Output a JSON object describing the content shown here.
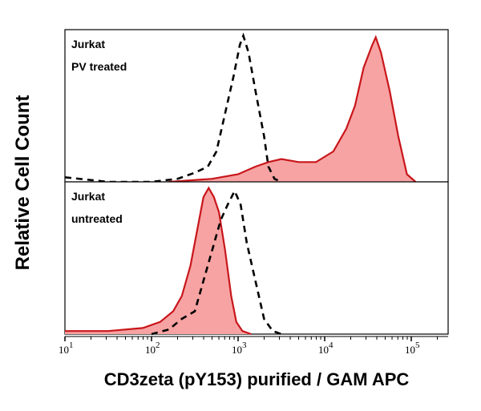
{
  "chart_data": {
    "type": "area",
    "xlabel": "CD3zeta (pY153) purified / GAM APC",
    "ylabel": "Relative Cell Count",
    "x_scale": "log",
    "xlim": [
      10,
      270000
    ],
    "x_ticks": [
      {
        "base": "10",
        "exp": "1"
      },
      {
        "base": "10",
        "exp": "2"
      },
      {
        "base": "10",
        "exp": "3"
      },
      {
        "base": "10",
        "exp": "4"
      },
      {
        "base": "10",
        "exp": "5"
      }
    ],
    "colors": {
      "fill": "#f7a3a3",
      "stroke": "#c8161b",
      "control": "#000000"
    },
    "panels": [
      {
        "label_line1": "Jurkat",
        "label_line2": "PV treated",
        "series": [
          {
            "style": "filled-red",
            "log10_x": [
              2.2,
              2.7,
              3.0,
              3.2,
              3.35,
              3.5,
              3.7,
              3.9,
              4.1,
              4.25,
              4.35,
              4.45,
              4.55,
              4.59,
              4.65,
              4.75,
              4.85,
              4.95,
              5.05
            ],
            "y": [
              0,
              0.02,
              0.05,
              0.1,
              0.13,
              0.15,
              0.13,
              0.13,
              0.2,
              0.35,
              0.5,
              0.75,
              0.9,
              0.95,
              0.85,
              0.6,
              0.3,
              0.05,
              0
            ]
          },
          {
            "style": "dashed-black",
            "log10_x": [
              1.0,
              1.5,
              2.0,
              2.3,
              2.5,
              2.65,
              2.75,
              2.85,
              2.95,
              3.02,
              3.06,
              3.12,
              3.2,
              3.3,
              3.35,
              3.42,
              3.5
            ],
            "y": [
              0.03,
              0.0,
              0.0,
              0.02,
              0.06,
              0.1,
              0.2,
              0.45,
              0.7,
              0.9,
              0.96,
              0.85,
              0.6,
              0.3,
              0.1,
              0.02,
              0
            ]
          }
        ]
      },
      {
        "label_line1": "Jurkat",
        "label_line2": "untreated",
        "series": [
          {
            "style": "filled-red",
            "log10_x": [
              1.0,
              1.5,
              1.9,
              2.1,
              2.25,
              2.35,
              2.45,
              2.5,
              2.55,
              2.6,
              2.66,
              2.72,
              2.78,
              2.85,
              2.92,
              2.98,
              3.05,
              3.15
            ],
            "y": [
              0.02,
              0.02,
              0.04,
              0.08,
              0.15,
              0.25,
              0.45,
              0.6,
              0.75,
              0.9,
              0.96,
              0.9,
              0.8,
              0.55,
              0.25,
              0.08,
              0.02,
              0
            ]
          },
          {
            "style": "dashed-black",
            "log10_x": [
              2.0,
              2.2,
              2.35,
              2.5,
              2.6,
              2.7,
              2.8,
              2.88,
              2.96,
              3.03,
              3.1,
              3.2,
              3.3,
              3.4,
              3.5
            ],
            "y": [
              0,
              0.03,
              0.1,
              0.15,
              0.35,
              0.55,
              0.75,
              0.85,
              0.94,
              0.85,
              0.6,
              0.35,
              0.1,
              0.02,
              0
            ]
          }
        ]
      }
    ]
  }
}
